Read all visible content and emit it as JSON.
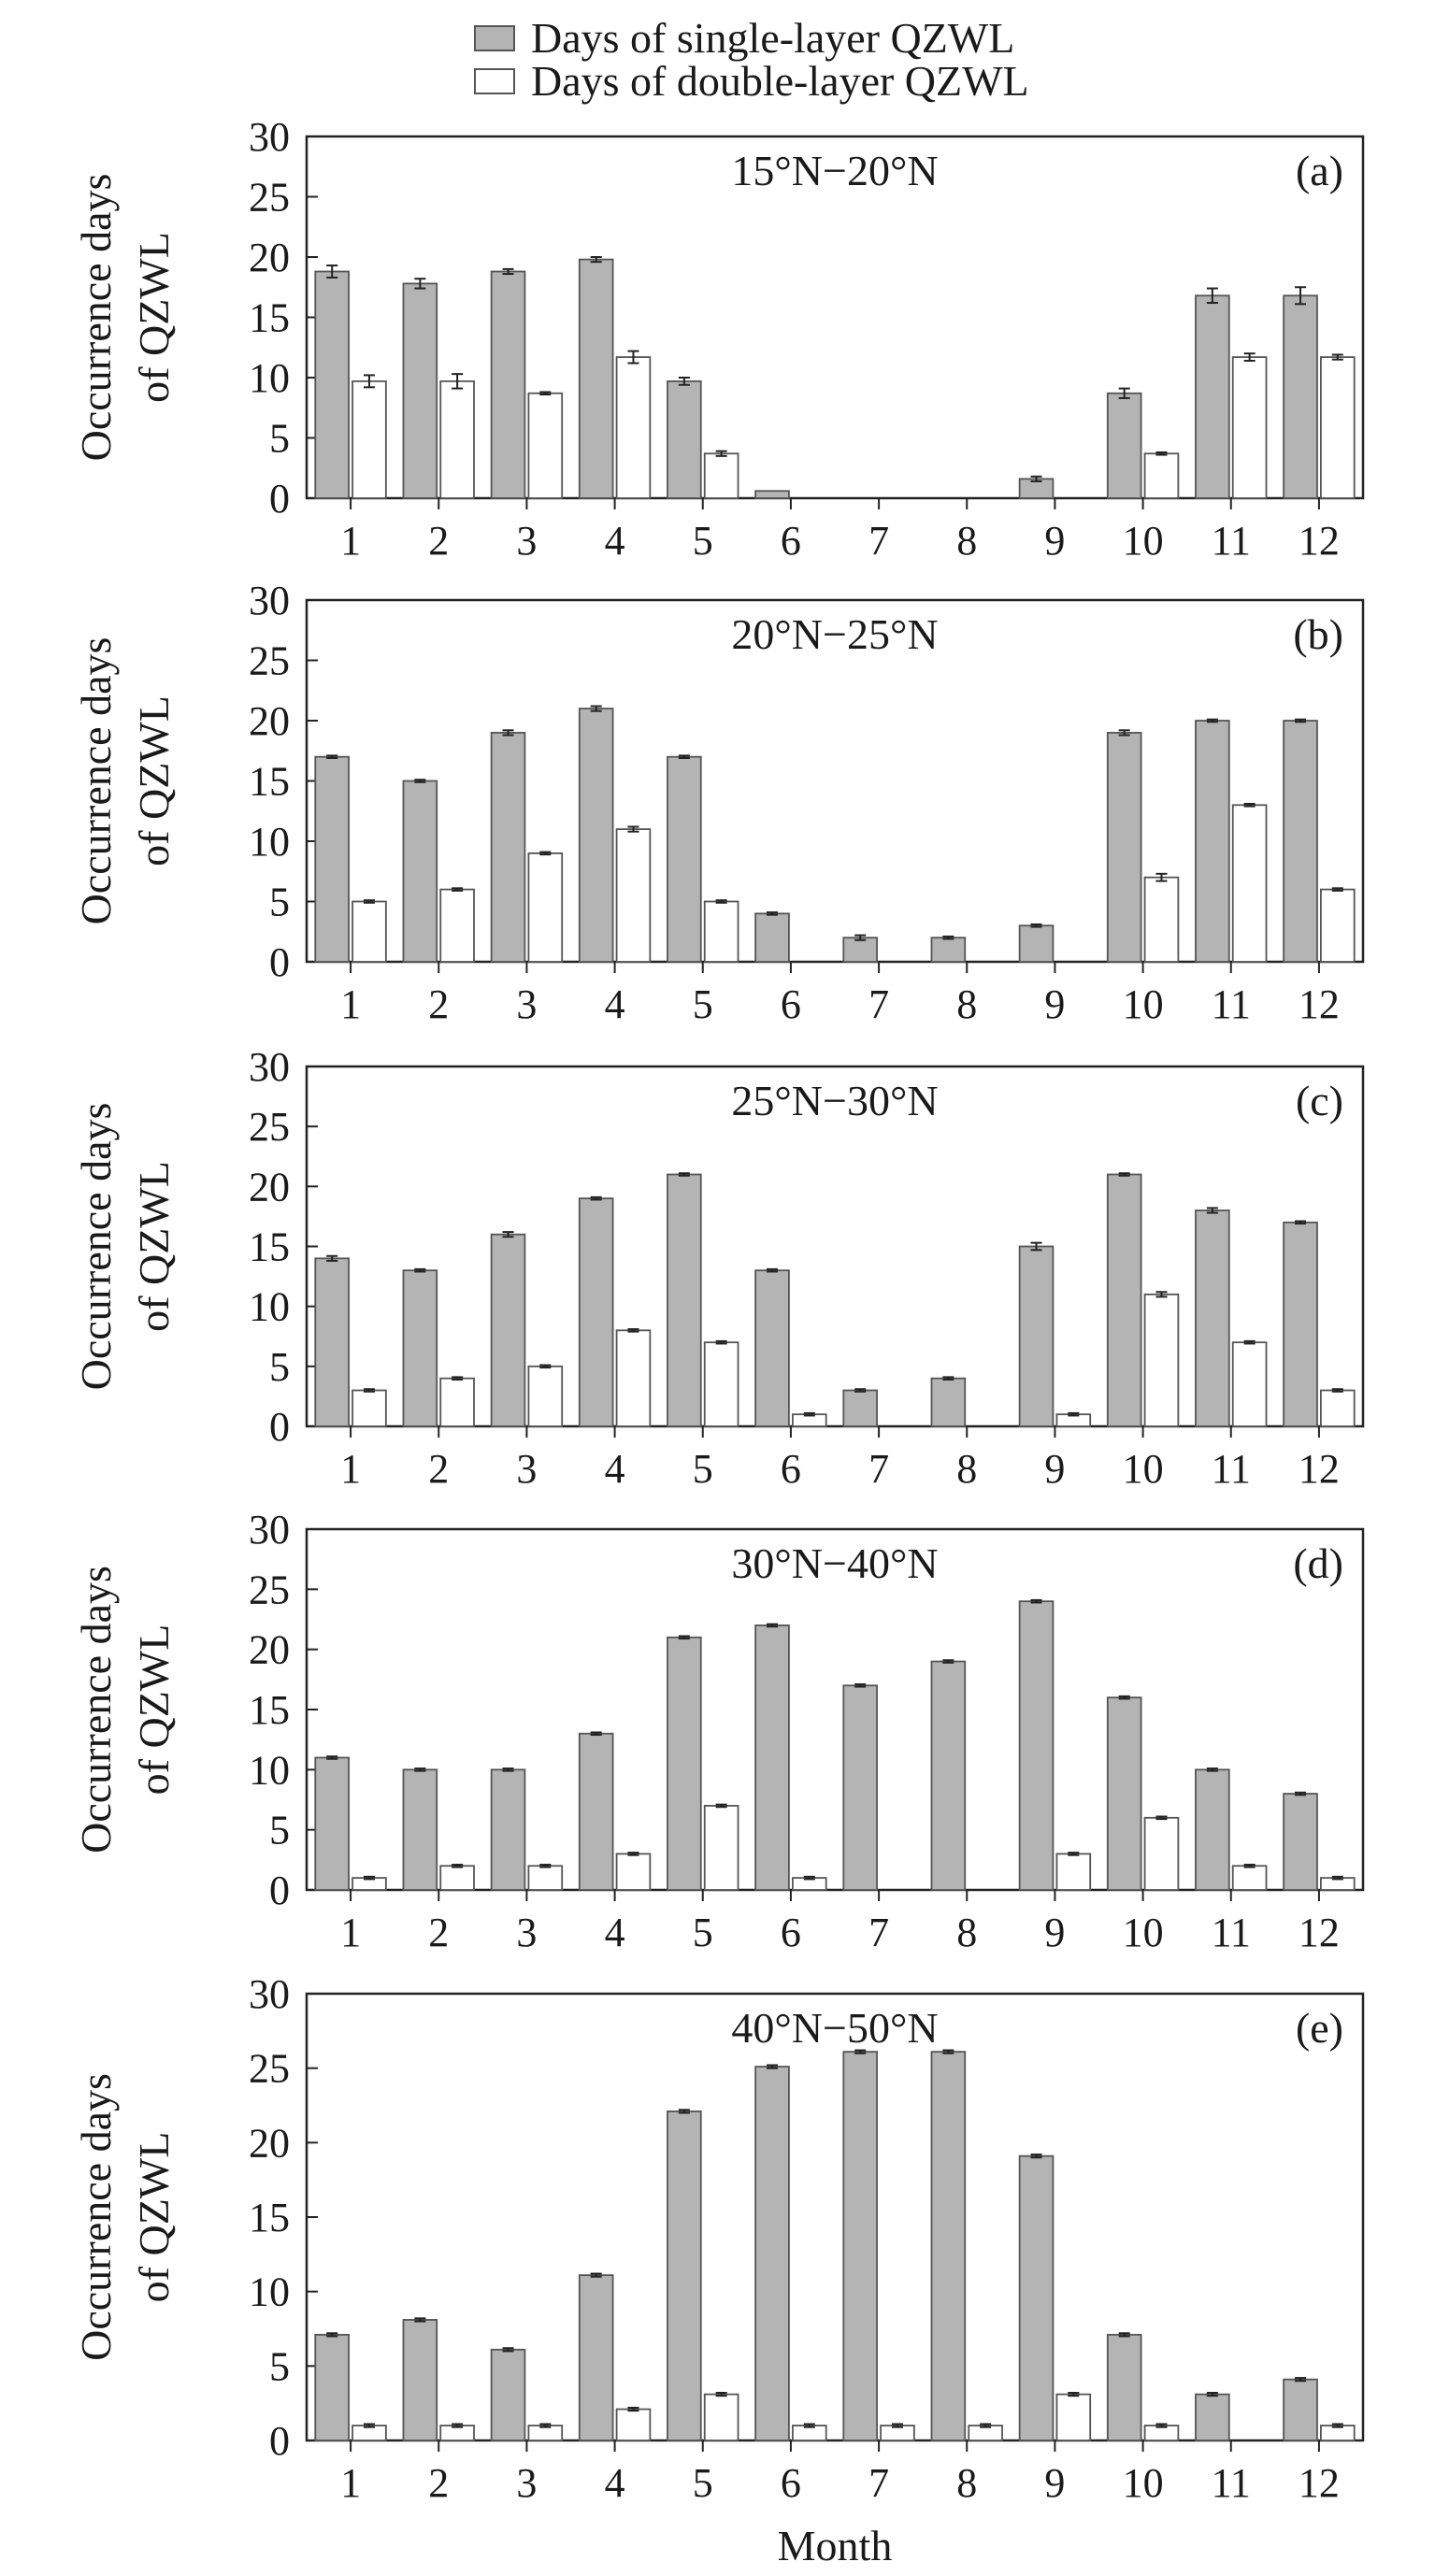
{
  "legend": [
    {
      "label": "Days of single-layer QZWL",
      "color": "#b4b4b4"
    },
    {
      "label": "Days of double-layer QZWL",
      "color": "#ffffff"
    }
  ],
  "colors": {
    "single": "#b4b4b4",
    "double": "#ffffff",
    "outline": "#555555",
    "axis": "#222222"
  },
  "chart_data": [
    {
      "type": "bar",
      "panel": "(a)",
      "title": "15°N−20°N",
      "ylabel": "Occurrence days of QZWL",
      "xlabel": "",
      "ylim": [
        0,
        30
      ],
      "yticks": [
        0,
        5,
        10,
        15,
        20,
        25,
        30
      ],
      "categories": [
        "1",
        "2",
        "3",
        "4",
        "5",
        "6",
        "7",
        "8",
        "9",
        "10",
        "11",
        "12"
      ],
      "series": [
        {
          "name": "Days of single-layer QZWL",
          "values": [
            18.8,
            17.8,
            18.8,
            19.8,
            9.7,
            0.6,
            0,
            0,
            1.6,
            8.7,
            16.8,
            16.8
          ],
          "errors": [
            0.5,
            0.4,
            0.2,
            0.2,
            0.3,
            0,
            0,
            0,
            0.2,
            0.4,
            0.6,
            0.7
          ]
        },
        {
          "name": "Days of double-layer QZWL",
          "values": [
            9.7,
            9.7,
            8.7,
            11.7,
            3.7,
            0,
            0,
            0,
            0,
            3.7,
            11.7,
            11.7
          ],
          "errors": [
            0.5,
            0.6,
            0.1,
            0.5,
            0.2,
            0,
            0,
            0,
            0,
            0.1,
            0.3,
            0.2
          ]
        }
      ]
    },
    {
      "type": "bar",
      "panel": "(b)",
      "title": "20°N−25°N",
      "ylabel": "Occurrence days of QZWL",
      "xlabel": "",
      "ylim": [
        0,
        30
      ],
      "yticks": [
        0,
        5,
        10,
        15,
        20,
        25,
        30
      ],
      "categories": [
        "1",
        "2",
        "3",
        "4",
        "5",
        "6",
        "7",
        "8",
        "9",
        "10",
        "11",
        "12"
      ],
      "series": [
        {
          "name": "Days of single-layer QZWL",
          "values": [
            17,
            15,
            19,
            21,
            17,
            4,
            2,
            2,
            3,
            19,
            20,
            20
          ],
          "errors": [
            0.1,
            0.1,
            0.2,
            0.2,
            0.1,
            0.1,
            0.2,
            0.1,
            0.1,
            0.2,
            0.1,
            0.1
          ]
        },
        {
          "name": "Days of double-layer QZWL",
          "values": [
            5,
            6,
            9,
            11,
            5,
            0,
            0,
            0,
            0,
            7,
            13,
            6
          ],
          "errors": [
            0.1,
            0.1,
            0.1,
            0.2,
            0.1,
            0,
            0,
            0,
            0,
            0.3,
            0.1,
            0.1
          ]
        }
      ]
    },
    {
      "type": "bar",
      "panel": "(c)",
      "title": "25°N−30°N",
      "ylabel": "Occurrence days of QZWL",
      "xlabel": "",
      "ylim": [
        0,
        30
      ],
      "yticks": [
        0,
        5,
        10,
        15,
        20,
        25,
        30
      ],
      "categories": [
        "1",
        "2",
        "3",
        "4",
        "5",
        "6",
        "7",
        "8",
        "9",
        "10",
        "11",
        "12"
      ],
      "series": [
        {
          "name": "Days of single-layer QZWL",
          "values": [
            14,
            13,
            16,
            19,
            21,
            13,
            3,
            4,
            15,
            21,
            18,
            17
          ],
          "errors": [
            0.2,
            0.1,
            0.2,
            0.1,
            0.1,
            0.1,
            0.1,
            0.1,
            0.3,
            0.1,
            0.2,
            0.1
          ]
        },
        {
          "name": "Days of double-layer QZWL",
          "values": [
            3,
            4,
            5,
            8,
            7,
            1,
            0,
            0,
            1,
            11,
            7,
            3
          ],
          "errors": [
            0.1,
            0.1,
            0.1,
            0.1,
            0.1,
            0.1,
            0,
            0,
            0.1,
            0.2,
            0.1,
            0.1
          ]
        }
      ]
    },
    {
      "type": "bar",
      "panel": "(d)",
      "title": "30°N−40°N",
      "ylabel": "Occurrence days of QZWL",
      "xlabel": "",
      "ylim": [
        0,
        30
      ],
      "yticks": [
        0,
        5,
        10,
        15,
        20,
        25,
        30
      ],
      "categories": [
        "1",
        "2",
        "3",
        "4",
        "5",
        "6",
        "7",
        "8",
        "9",
        "10",
        "11",
        "12"
      ],
      "series": [
        {
          "name": "Days of single-layer QZWL",
          "values": [
            11,
            10,
            10,
            13,
            21,
            22,
            17,
            19,
            24,
            16,
            10,
            8
          ],
          "errors": [
            0.1,
            0.1,
            0.1,
            0.1,
            0.1,
            0.1,
            0.1,
            0.1,
            0.1,
            0.1,
            0.1,
            0.1
          ]
        },
        {
          "name": "Days of double-layer QZWL",
          "values": [
            1,
            2,
            2,
            3,
            7,
            1,
            0,
            0,
            3,
            6,
            2,
            1
          ],
          "errors": [
            0.1,
            0.1,
            0.1,
            0.1,
            0.1,
            0.1,
            0,
            0,
            0.1,
            0.1,
            0.1,
            0.1
          ]
        }
      ]
    },
    {
      "type": "bar",
      "panel": "(e)",
      "title": "40°N−50°N",
      "ylabel": "Occurrence days of QZWL",
      "xlabel": "Month",
      "ylim": [
        0,
        30
      ],
      "yticks": [
        0,
        5,
        10,
        15,
        20,
        25,
        30
      ],
      "categories": [
        "1",
        "2",
        "3",
        "4",
        "5",
        "6",
        "7",
        "8",
        "9",
        "10",
        "11",
        "12"
      ],
      "series": [
        {
          "name": "Days of single-layer QZWL",
          "values": [
            7.1,
            8.1,
            6.1,
            11.1,
            22.1,
            25.1,
            26.1,
            26.1,
            19.1,
            7.1,
            3.1,
            4.1
          ],
          "errors": [
            0.1,
            0.1,
            0.1,
            0.1,
            0.1,
            0.1,
            0.1,
            0.1,
            0.1,
            0.1,
            0.1,
            0.1
          ]
        },
        {
          "name": "Days of double-layer QZWL",
          "values": [
            1,
            1,
            1,
            2.1,
            3.1,
            1,
            1,
            1,
            3.1,
            1,
            0,
            1
          ],
          "errors": [
            0.1,
            0.1,
            0.1,
            0.1,
            0.1,
            0.1,
            0.1,
            0.1,
            0.1,
            0.1,
            0,
            0.1
          ]
        }
      ]
    }
  ]
}
